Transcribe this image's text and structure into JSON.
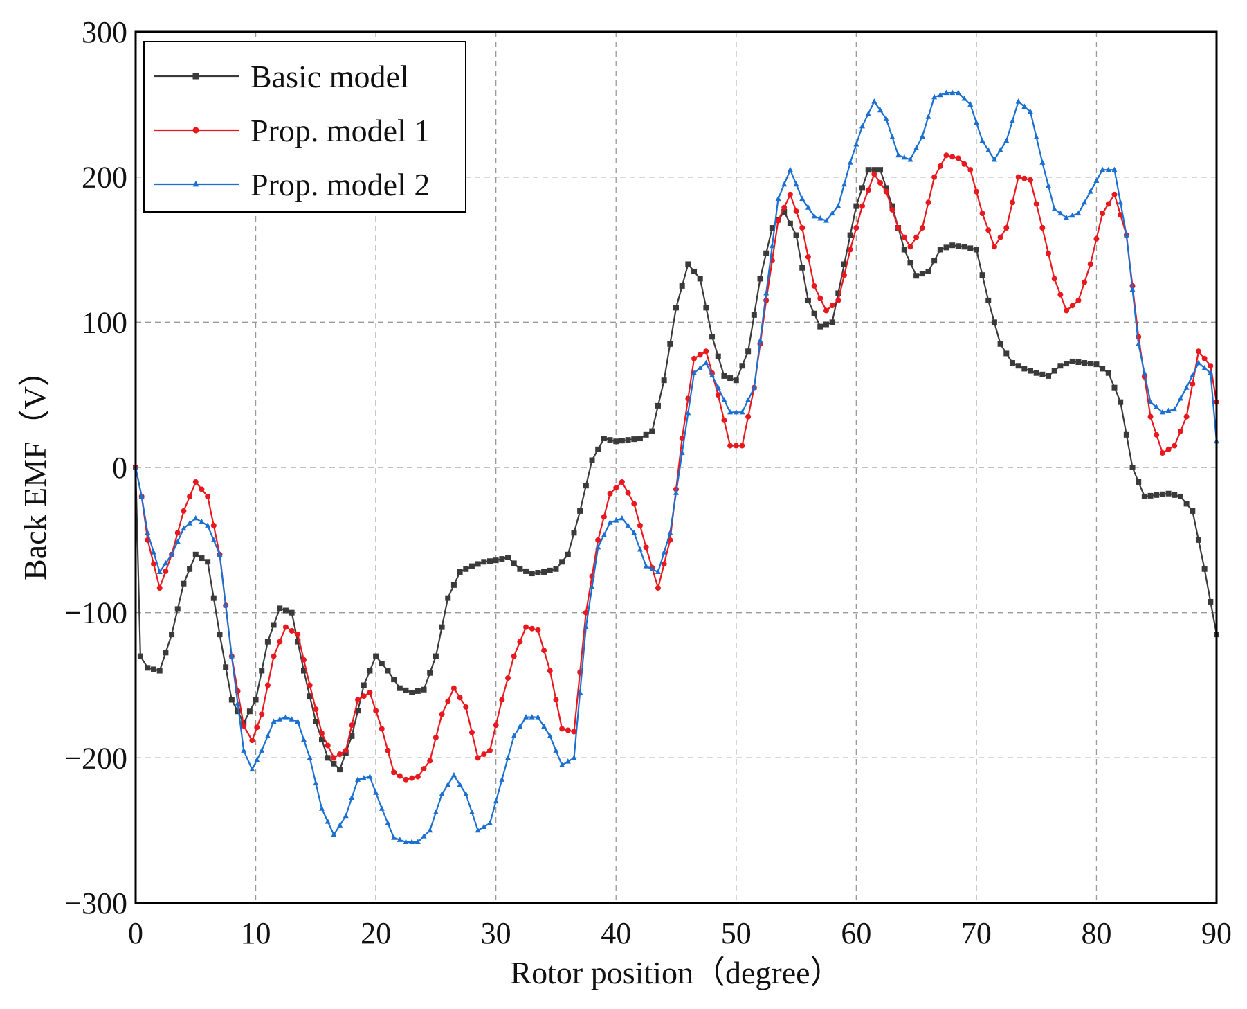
{
  "chart_data": {
    "type": "line",
    "title": "",
    "xlabel": "Rotor position（degree）",
    "ylabel": "Back EMF（V）",
    "xlim": [
      0,
      90
    ],
    "ylim": [
      -300,
      300
    ],
    "xticks": [
      0,
      10,
      20,
      30,
      40,
      50,
      60,
      70,
      80,
      90
    ],
    "yticks": [
      -300,
      -200,
      -100,
      0,
      100,
      200,
      300
    ],
    "xtick_labels": [
      "0",
      "10",
      "20",
      "30",
      "40",
      "50",
      "60",
      "70",
      "80",
      "90"
    ],
    "ytick_labels": [
      "−300",
      "−200",
      "−100",
      "0",
      "100",
      "200",
      "300"
    ],
    "grid": true,
    "legend_position": "top-left",
    "series": [
      {
        "name": "Basic model",
        "color": "#3a3a3a",
        "marker": "square",
        "points": [
          [
            0,
            0
          ],
          [
            0.4,
            -130
          ],
          [
            1,
            -138
          ],
          [
            2,
            -140
          ],
          [
            3,
            -115
          ],
          [
            4,
            -80
          ],
          [
            5,
            -60
          ],
          [
            6,
            -65
          ],
          [
            7,
            -115
          ],
          [
            8,
            -160
          ],
          [
            9,
            -176
          ],
          [
            10,
            -160
          ],
          [
            11,
            -120
          ],
          [
            12,
            -97
          ],
          [
            13,
            -100
          ],
          [
            14,
            -140
          ],
          [
            15,
            -175
          ],
          [
            16,
            -200
          ],
          [
            17,
            -208
          ],
          [
            18,
            -185
          ],
          [
            19,
            -150
          ],
          [
            20,
            -130
          ],
          [
            21,
            -140
          ],
          [
            22,
            -152
          ],
          [
            23,
            -155
          ],
          [
            24,
            -153
          ],
          [
            25,
            -130
          ],
          [
            26,
            -90
          ],
          [
            27,
            -72
          ],
          [
            28,
            -68
          ],
          [
            29,
            -65
          ],
          [
            30,
            -64
          ],
          [
            31,
            -62
          ],
          [
            32,
            -70
          ],
          [
            33,
            -73
          ],
          [
            34,
            -72
          ],
          [
            35,
            -70
          ],
          [
            36,
            -60
          ],
          [
            37,
            -30
          ],
          [
            38,
            5
          ],
          [
            39,
            20
          ],
          [
            40,
            18
          ],
          [
            41,
            19
          ],
          [
            42,
            20
          ],
          [
            43,
            25
          ],
          [
            44,
            60
          ],
          [
            45,
            110
          ],
          [
            46,
            140
          ],
          [
            47,
            130
          ],
          [
            48,
            90
          ],
          [
            49,
            63
          ],
          [
            50,
            60
          ],
          [
            51,
            80
          ],
          [
            52,
            130
          ],
          [
            53,
            165
          ],
          [
            54,
            176
          ],
          [
            55,
            160
          ],
          [
            56,
            115
          ],
          [
            57,
            97
          ],
          [
            58,
            100
          ],
          [
            59,
            140
          ],
          [
            60,
            180
          ],
          [
            61,
            205
          ],
          [
            62,
            205
          ],
          [
            63,
            180
          ],
          [
            64,
            150
          ],
          [
            65,
            132
          ],
          [
            66,
            135
          ],
          [
            67,
            150
          ],
          [
            68,
            153
          ],
          [
            69,
            152
          ],
          [
            70,
            150
          ],
          [
            71,
            115
          ],
          [
            72,
            85
          ],
          [
            73,
            72
          ],
          [
            74,
            68
          ],
          [
            75,
            65
          ],
          [
            76,
            63
          ],
          [
            77,
            70
          ],
          [
            78,
            73
          ],
          [
            79,
            72
          ],
          [
            80,
            71
          ],
          [
            81,
            65
          ],
          [
            82,
            45
          ],
          [
            83,
            0
          ],
          [
            84,
            -20
          ],
          [
            85,
            -19
          ],
          [
            86,
            -18
          ],
          [
            87,
            -20
          ],
          [
            88,
            -30
          ],
          [
            89,
            -70
          ],
          [
            90,
            -115
          ]
        ]
      },
      {
        "name": "Prop. model 1",
        "color": "#e8191e",
        "marker": "circle",
        "points": [
          [
            0,
            0
          ],
          [
            0.5,
            -20
          ],
          [
            1,
            -50
          ],
          [
            2,
            -83
          ],
          [
            3,
            -60
          ],
          [
            4,
            -30
          ],
          [
            5,
            -10
          ],
          [
            6,
            -20
          ],
          [
            7,
            -60
          ],
          [
            8,
            -130
          ],
          [
            9,
            -178
          ],
          [
            9.7,
            -188
          ],
          [
            10.5,
            -170
          ],
          [
            11.5,
            -130
          ],
          [
            12.5,
            -110
          ],
          [
            13.5,
            -115
          ],
          [
            14.5,
            -150
          ],
          [
            15.5,
            -183
          ],
          [
            16.5,
            -200
          ],
          [
            17.5,
            -195
          ],
          [
            18.5,
            -160
          ],
          [
            19.5,
            -155
          ],
          [
            20.5,
            -180
          ],
          [
            21.5,
            -210
          ],
          [
            22.5,
            -215
          ],
          [
            23.5,
            -213
          ],
          [
            24.5,
            -202
          ],
          [
            25.5,
            -170
          ],
          [
            26.5,
            -152
          ],
          [
            27.5,
            -165
          ],
          [
            28.5,
            -200
          ],
          [
            29.5,
            -195
          ],
          [
            30.5,
            -160
          ],
          [
            31.5,
            -130
          ],
          [
            32.5,
            -110
          ],
          [
            33.5,
            -112
          ],
          [
            34.5,
            -140
          ],
          [
            35.5,
            -180
          ],
          [
            36.5,
            -182
          ],
          [
            37.5,
            -100
          ],
          [
            38.5,
            -50
          ],
          [
            39.5,
            -18
          ],
          [
            40.5,
            -10
          ],
          [
            41.5,
            -25
          ],
          [
            42.5,
            -55
          ],
          [
            43.5,
            -83
          ],
          [
            44.5,
            -50
          ],
          [
            45.5,
            20
          ],
          [
            46.5,
            75
          ],
          [
            47.5,
            80
          ],
          [
            48.5,
            50
          ],
          [
            49.5,
            15
          ],
          [
            50.5,
            15
          ],
          [
            51.5,
            55
          ],
          [
            52.5,
            115
          ],
          [
            53.5,
            170
          ],
          [
            54.5,
            188
          ],
          [
            55.5,
            165
          ],
          [
            56.5,
            125
          ],
          [
            57.5,
            108
          ],
          [
            58.5,
            115
          ],
          [
            59.5,
            150
          ],
          [
            60.5,
            180
          ],
          [
            61.5,
            202
          ],
          [
            62.5,
            190
          ],
          [
            63.5,
            165
          ],
          [
            64.5,
            152
          ],
          [
            65.5,
            165
          ],
          [
            66.5,
            200
          ],
          [
            67.5,
            215
          ],
          [
            68.5,
            213
          ],
          [
            69.5,
            205
          ],
          [
            70.5,
            175
          ],
          [
            71.5,
            152
          ],
          [
            72.5,
            165
          ],
          [
            73.5,
            200
          ],
          [
            74.5,
            198
          ],
          [
            75.5,
            165
          ],
          [
            76.5,
            130
          ],
          [
            77.5,
            108
          ],
          [
            78.5,
            115
          ],
          [
            79.5,
            140
          ],
          [
            80.5,
            175
          ],
          [
            81.5,
            188
          ],
          [
            82.5,
            160
          ],
          [
            83.5,
            90
          ],
          [
            84.5,
            35
          ],
          [
            85.5,
            10
          ],
          [
            86.5,
            15
          ],
          [
            87.5,
            35
          ],
          [
            88.5,
            80
          ],
          [
            89.5,
            70
          ],
          [
            90,
            45
          ]
        ]
      },
      {
        "name": "Prop. model 2",
        "color": "#1a6fd1",
        "marker": "triangle",
        "points": [
          [
            0,
            0
          ],
          [
            0.5,
            -20
          ],
          [
            1,
            -45
          ],
          [
            2,
            -72
          ],
          [
            3,
            -60
          ],
          [
            4,
            -42
          ],
          [
            5,
            -35
          ],
          [
            6,
            -40
          ],
          [
            7,
            -60
          ],
          [
            8,
            -130
          ],
          [
            9,
            -195
          ],
          [
            9.7,
            -208
          ],
          [
            10.5,
            -195
          ],
          [
            11.5,
            -175
          ],
          [
            12.5,
            -172
          ],
          [
            13.5,
            -175
          ],
          [
            14.5,
            -200
          ],
          [
            15.5,
            -235
          ],
          [
            16.5,
            -253
          ],
          [
            17.5,
            -240
          ],
          [
            18.5,
            -215
          ],
          [
            19.5,
            -213
          ],
          [
            20.5,
            -235
          ],
          [
            21.5,
            -255
          ],
          [
            22.5,
            -258
          ],
          [
            23.5,
            -258
          ],
          [
            24.5,
            -250
          ],
          [
            25.5,
            -225
          ],
          [
            26.5,
            -212
          ],
          [
            27.5,
            -225
          ],
          [
            28.5,
            -250
          ],
          [
            29.5,
            -245
          ],
          [
            30.5,
            -215
          ],
          [
            31.5,
            -185
          ],
          [
            32.5,
            -172
          ],
          [
            33.5,
            -172
          ],
          [
            34.5,
            -185
          ],
          [
            35.5,
            -205
          ],
          [
            36.5,
            -200
          ],
          [
            37.5,
            -110
          ],
          [
            38.5,
            -55
          ],
          [
            39.5,
            -38
          ],
          [
            40.5,
            -35
          ],
          [
            41.5,
            -45
          ],
          [
            42.5,
            -68
          ],
          [
            43.5,
            -72
          ],
          [
            44.5,
            -45
          ],
          [
            45.5,
            10
          ],
          [
            46.5,
            65
          ],
          [
            47.5,
            72
          ],
          [
            48.5,
            55
          ],
          [
            49.5,
            38
          ],
          [
            50.5,
            38
          ],
          [
            51.5,
            55
          ],
          [
            52.5,
            120
          ],
          [
            53.5,
            185
          ],
          [
            54.5,
            205
          ],
          [
            55.5,
            185
          ],
          [
            56.5,
            173
          ],
          [
            57.5,
            170
          ],
          [
            58.5,
            180
          ],
          [
            59.5,
            210
          ],
          [
            60.5,
            235
          ],
          [
            61.5,
            252
          ],
          [
            62.5,
            240
          ],
          [
            63.5,
            215
          ],
          [
            64.5,
            212
          ],
          [
            65.5,
            228
          ],
          [
            66.5,
            255
          ],
          [
            67.5,
            258
          ],
          [
            68.5,
            258
          ],
          [
            69.5,
            250
          ],
          [
            70.5,
            225
          ],
          [
            71.5,
            212
          ],
          [
            72.5,
            225
          ],
          [
            73.5,
            252
          ],
          [
            74.5,
            245
          ],
          [
            75.5,
            210
          ],
          [
            76.5,
            178
          ],
          [
            77.5,
            172
          ],
          [
            78.5,
            175
          ],
          [
            79.5,
            190
          ],
          [
            80.5,
            205
          ],
          [
            81.5,
            205
          ],
          [
            82.5,
            160
          ],
          [
            83.5,
            85
          ],
          [
            84.5,
            45
          ],
          [
            85.5,
            38
          ],
          [
            86.5,
            40
          ],
          [
            87.5,
            55
          ],
          [
            88.5,
            72
          ],
          [
            89.5,
            65
          ],
          [
            90,
            18
          ]
        ]
      }
    ]
  }
}
